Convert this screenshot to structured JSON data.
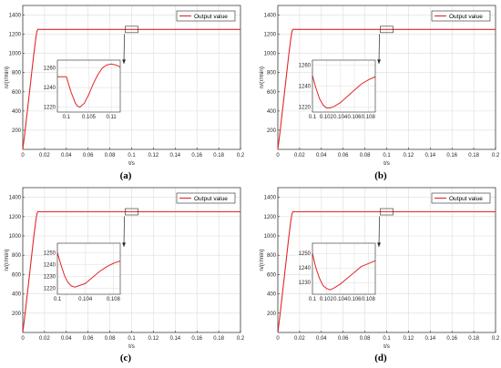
{
  "chart_data": [
    {
      "type": "line",
      "caption": "(a)",
      "xlabel": "t/s",
      "ylabel": "n/(r/min)",
      "xlim": [
        0,
        0.2
      ],
      "ylim": [
        0,
        1500
      ],
      "xticks": [
        "0",
        "0.02",
        "0.04",
        "0.06",
        "0.08",
        "0.1",
        "0.12",
        "0.14",
        "0.16",
        "0.18",
        "0.2"
      ],
      "yticks": [
        "200",
        "400",
        "600",
        "800",
        "1000",
        "1200",
        "1400"
      ],
      "grid": true,
      "legend": "top-right",
      "series": [
        {
          "name": "Output value",
          "color": "#e3262a",
          "x": [
            0,
            0.002,
            0.004,
            0.006,
            0.008,
            0.01,
            0.012,
            0.013,
            0.014,
            0.016,
            0.02,
            0.2
          ],
          "y": [
            0,
            180,
            380,
            580,
            780,
            980,
            1160,
            1230,
            1252,
            1250,
            1250,
            1250
          ]
        }
      ],
      "inset": {
        "xlim": [
          0.098,
          0.112
        ],
        "ylim": [
          1215,
          1268
        ],
        "xticks": [
          0.1,
          0.105,
          0.11
        ],
        "xtick_labels": [
          "0.1",
          "0.105",
          "0.11"
        ],
        "yticks": [
          1220,
          1240,
          1260
        ],
        "ytick_labels": [
          "1220",
          "1240",
          "1260"
        ],
        "x": [
          0.098,
          0.0995,
          0.1,
          0.101,
          0.102,
          0.1025,
          0.103,
          0.104,
          0.105,
          0.106,
          0.107,
          0.108,
          0.109,
          0.11,
          0.111,
          0.112
        ],
        "y": [
          1251,
          1251,
          1251,
          1236,
          1224,
          1221,
          1220,
          1224,
          1233,
          1244,
          1253,
          1260,
          1263,
          1264,
          1263,
          1261
        ]
      }
    },
    {
      "type": "line",
      "caption": "(b)",
      "xlabel": "t/s",
      "ylabel": "n/(r/min)",
      "xlim": [
        0,
        0.2
      ],
      "ylim": [
        0,
        1500
      ],
      "xticks": [
        "0",
        "0.02",
        "0.04",
        "0.06",
        "0.08",
        "0.1",
        "0.12",
        "0.14",
        "0.16",
        "0.18",
        "0.2"
      ],
      "yticks": [
        "200",
        "400",
        "600",
        "800",
        "1000",
        "1200",
        "1400"
      ],
      "grid": true,
      "legend": "top-right",
      "series": [
        {
          "name": "Output value",
          "color": "#e3262a",
          "x": [
            0,
            0.002,
            0.004,
            0.006,
            0.008,
            0.01,
            0.012,
            0.013,
            0.014,
            0.016,
            0.02,
            0.2
          ],
          "y": [
            0,
            180,
            380,
            580,
            780,
            980,
            1160,
            1230,
            1252,
            1250,
            1250,
            1250
          ]
        }
      ],
      "inset": {
        "xlim": [
          0.1,
          0.109
        ],
        "ylim": [
          1215,
          1265
        ],
        "xticks": [
          0.1,
          0.102,
          0.104,
          0.106,
          0.108
        ],
        "xtick_labels": [
          "0.1",
          "0.102",
          "0.104",
          "0.106",
          "0.108"
        ],
        "yticks": [
          1220,
          1240,
          1260
        ],
        "ytick_labels": [
          "1220",
          "1240",
          "1260"
        ],
        "x": [
          0.1,
          0.1005,
          0.101,
          0.1015,
          0.102,
          0.1025,
          0.103,
          0.104,
          0.105,
          0.106,
          0.107,
          0.108,
          0.109
        ],
        "y": [
          1250,
          1238,
          1228,
          1222,
          1219,
          1219,
          1220,
          1224,
          1230,
          1236,
          1242,
          1246,
          1249
        ]
      }
    },
    {
      "type": "line",
      "caption": "(c)",
      "xlabel": "t/s",
      "ylabel": "n/(r/min)",
      "xlim": [
        0,
        0.2
      ],
      "ylim": [
        0,
        1500
      ],
      "xticks": [
        "0",
        "0.02",
        "0.04",
        "0.06",
        "0.08",
        "0.1",
        "0.12",
        "0.14",
        "0.16",
        "0.18",
        "0.2"
      ],
      "yticks": [
        "200",
        "400",
        "600",
        "800",
        "1000",
        "1200",
        "1400"
      ],
      "grid": true,
      "legend": "top-right",
      "series": [
        {
          "name": "Output value",
          "color": "#e3262a",
          "x": [
            0,
            0.002,
            0.004,
            0.006,
            0.008,
            0.01,
            0.012,
            0.013,
            0.014,
            0.016,
            0.02,
            0.2
          ],
          "y": [
            0,
            180,
            380,
            580,
            780,
            980,
            1160,
            1230,
            1252,
            1250,
            1250,
            1250
          ]
        }
      ],
      "inset": {
        "xlim": [
          0.1,
          0.109
        ],
        "ylim": [
          1215,
          1258
        ],
        "xticks": [
          0.1,
          0.104,
          0.108
        ],
        "xtick_labels": [
          "0.1",
          "0.104",
          "0.108"
        ],
        "yticks": [
          1220,
          1230,
          1240,
          1250
        ],
        "ytick_labels": [
          "1220",
          "1230",
          "1240",
          "1250"
        ],
        "x": [
          0.1,
          0.1005,
          0.101,
          0.1015,
          0.102,
          0.1025,
          0.103,
          0.104,
          0.105,
          0.106,
          0.107,
          0.108,
          0.109
        ],
        "y": [
          1250,
          1240,
          1231,
          1225,
          1222,
          1221,
          1222,
          1224,
          1229,
          1234,
          1238,
          1241,
          1243
        ]
      }
    },
    {
      "type": "line",
      "caption": "(d)",
      "xlabel": "t/s",
      "ylabel": "n/(r/min)",
      "xlim": [
        0,
        0.2
      ],
      "ylim": [
        0,
        1500
      ],
      "xticks": [
        "0",
        "0.02",
        "0.04",
        "0.06",
        "0.08",
        "0.1",
        "0.12",
        "0.14",
        "0.16",
        "0.18",
        "0.2"
      ],
      "yticks": [
        "200",
        "400",
        "600",
        "800",
        "1000",
        "1200",
        "1400"
      ],
      "grid": true,
      "legend": "top-right",
      "series": [
        {
          "name": "Output value",
          "color": "#e3262a",
          "x": [
            0,
            0.002,
            0.004,
            0.006,
            0.008,
            0.01,
            0.012,
            0.013,
            0.014,
            0.016,
            0.02,
            0.2
          ],
          "y": [
            0,
            180,
            380,
            580,
            780,
            980,
            1160,
            1230,
            1252,
            1250,
            1250,
            1250
          ]
        }
      ],
      "inset": {
        "xlim": [
          0.1,
          0.109
        ],
        "ylim": [
          1222,
          1257
        ],
        "xticks": [
          0.1,
          0.102,
          0.104,
          0.106,
          0.108
        ],
        "xtick_labels": [
          "0.1",
          "0.102",
          "0.104",
          "0.106",
          "0.108"
        ],
        "yticks": [
          1230,
          1240,
          1250
        ],
        "ytick_labels": [
          "1230",
          "1240",
          "1250"
        ],
        "x": [
          0.1,
          0.1005,
          0.101,
          0.1015,
          0.102,
          0.1025,
          0.103,
          0.104,
          0.105,
          0.106,
          0.107,
          0.108,
          0.109
        ],
        "y": [
          1250,
          1240,
          1233,
          1228,
          1226,
          1225,
          1226,
          1229,
          1233,
          1237,
          1241,
          1243,
          1245
        ]
      }
    }
  ]
}
